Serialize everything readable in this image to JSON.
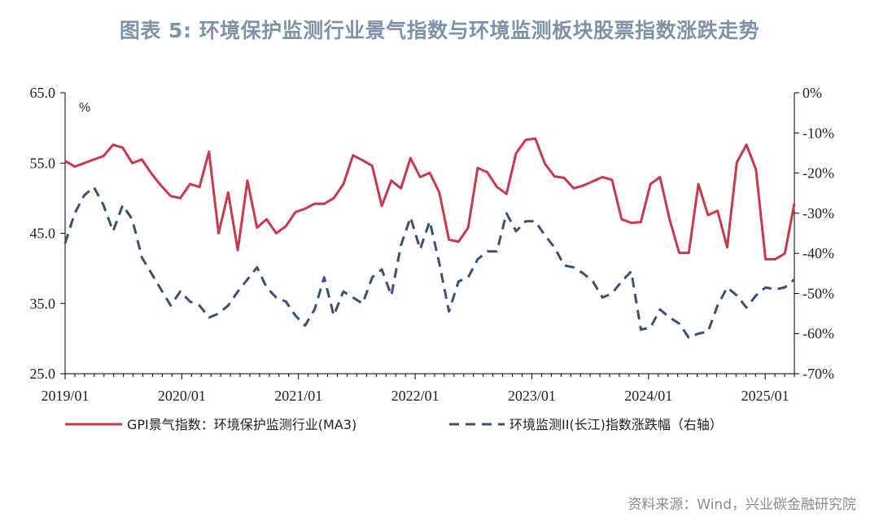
{
  "title": "图表 5:   环境保护监测行业景气指数与环境监测板块股票指数涨跌走势",
  "source": "资料来源：Wind，兴业碳金融研究院",
  "chart_data": {
    "type": "line",
    "left_axis": {
      "unit": "%",
      "ylim": [
        25,
        65
      ],
      "ticks": [
        "65.0",
        "55.0",
        "45.0",
        "35.0",
        "25.0"
      ]
    },
    "right_axis": {
      "ylim": [
        -70,
        0
      ],
      "ticks": [
        "0%",
        "-10%",
        "-20%",
        "-30%",
        "-40%",
        "-50%",
        "-60%",
        "-70%"
      ]
    },
    "x_ticks": [
      "2019/01",
      "2020/01",
      "2021/01",
      "2022/01",
      "2023/01",
      "2024/01",
      "2025/01"
    ],
    "x_start": "2019/01",
    "series": [
      {
        "name": "GPI景气指数：环境保护监测行业(MA3)",
        "axis": "left",
        "color": "#c8394e",
        "style": "solid",
        "values": [
          55.3,
          54.5,
          55.0,
          55.5,
          56.0,
          57.6,
          57.2,
          55.0,
          55.5,
          53.5,
          51.8,
          50.3,
          50.0,
          52.0,
          51.6,
          56.6,
          45.0,
          50.8,
          42.6,
          52.5,
          45.8,
          47.0,
          45.0,
          46.0,
          48.0,
          48.5,
          49.2,
          49.2,
          50.0,
          52.0,
          56.1,
          55.4,
          54.6,
          48.9,
          52.5,
          51.4,
          55.7,
          53.0,
          53.6,
          50.8,
          44.1,
          43.8,
          45.8,
          54.3,
          53.7,
          51.6,
          50.6,
          56.4,
          58.3,
          58.5,
          54.9,
          53.1,
          52.9,
          51.4,
          51.8,
          52.4,
          53.0,
          52.6,
          47.0,
          46.5,
          46.6,
          52.0,
          53.0,
          47.0,
          42.2,
          42.2,
          52.0,
          47.6,
          48.2,
          43.0,
          55.1,
          57.6,
          54.1,
          41.3,
          41.3,
          42.1,
          49.2
        ]
      },
      {
        "name": "环境监测II(长江)指数涨跌幅（右轴）",
        "axis": "right",
        "color": "#3b5170",
        "style": "dashed",
        "values": [
          -37.5,
          -30.0,
          -25.5,
          -23.5,
          -28.0,
          -34.5,
          -28.0,
          -31.5,
          -41.0,
          -45.0,
          -49.0,
          -53.0,
          -49.5,
          -52.0,
          -53.0,
          -56.0,
          -55.0,
          -53.0,
          -49.5,
          -46.5,
          -43.5,
          -48.5,
          -51.0,
          -52.0,
          -55.5,
          -58.0,
          -54.0,
          -46.0,
          -55.5,
          -49.5,
          -51.0,
          -52.5,
          -46.0,
          -44.0,
          -50.5,
          -38.0,
          -31.0,
          -39.0,
          -32.0,
          -42.5,
          -54.5,
          -47.0,
          -46.0,
          -41.5,
          -39.5,
          -39.5,
          -30.0,
          -34.5,
          -32.0,
          -32.0,
          -35.5,
          -38.5,
          -43.0,
          -43.5,
          -45.0,
          -47.0,
          -51.0,
          -50.0,
          -47.0,
          -44.5,
          -59.0,
          -58.5,
          -54.0,
          -56.0,
          -57.5,
          -61.0,
          -60.0,
          -59.5,
          -53.0,
          -48.5,
          -50.5,
          -53.5,
          -50.5,
          -48.5,
          -49.0,
          -48.5,
          -46.5
        ]
      }
    ]
  }
}
